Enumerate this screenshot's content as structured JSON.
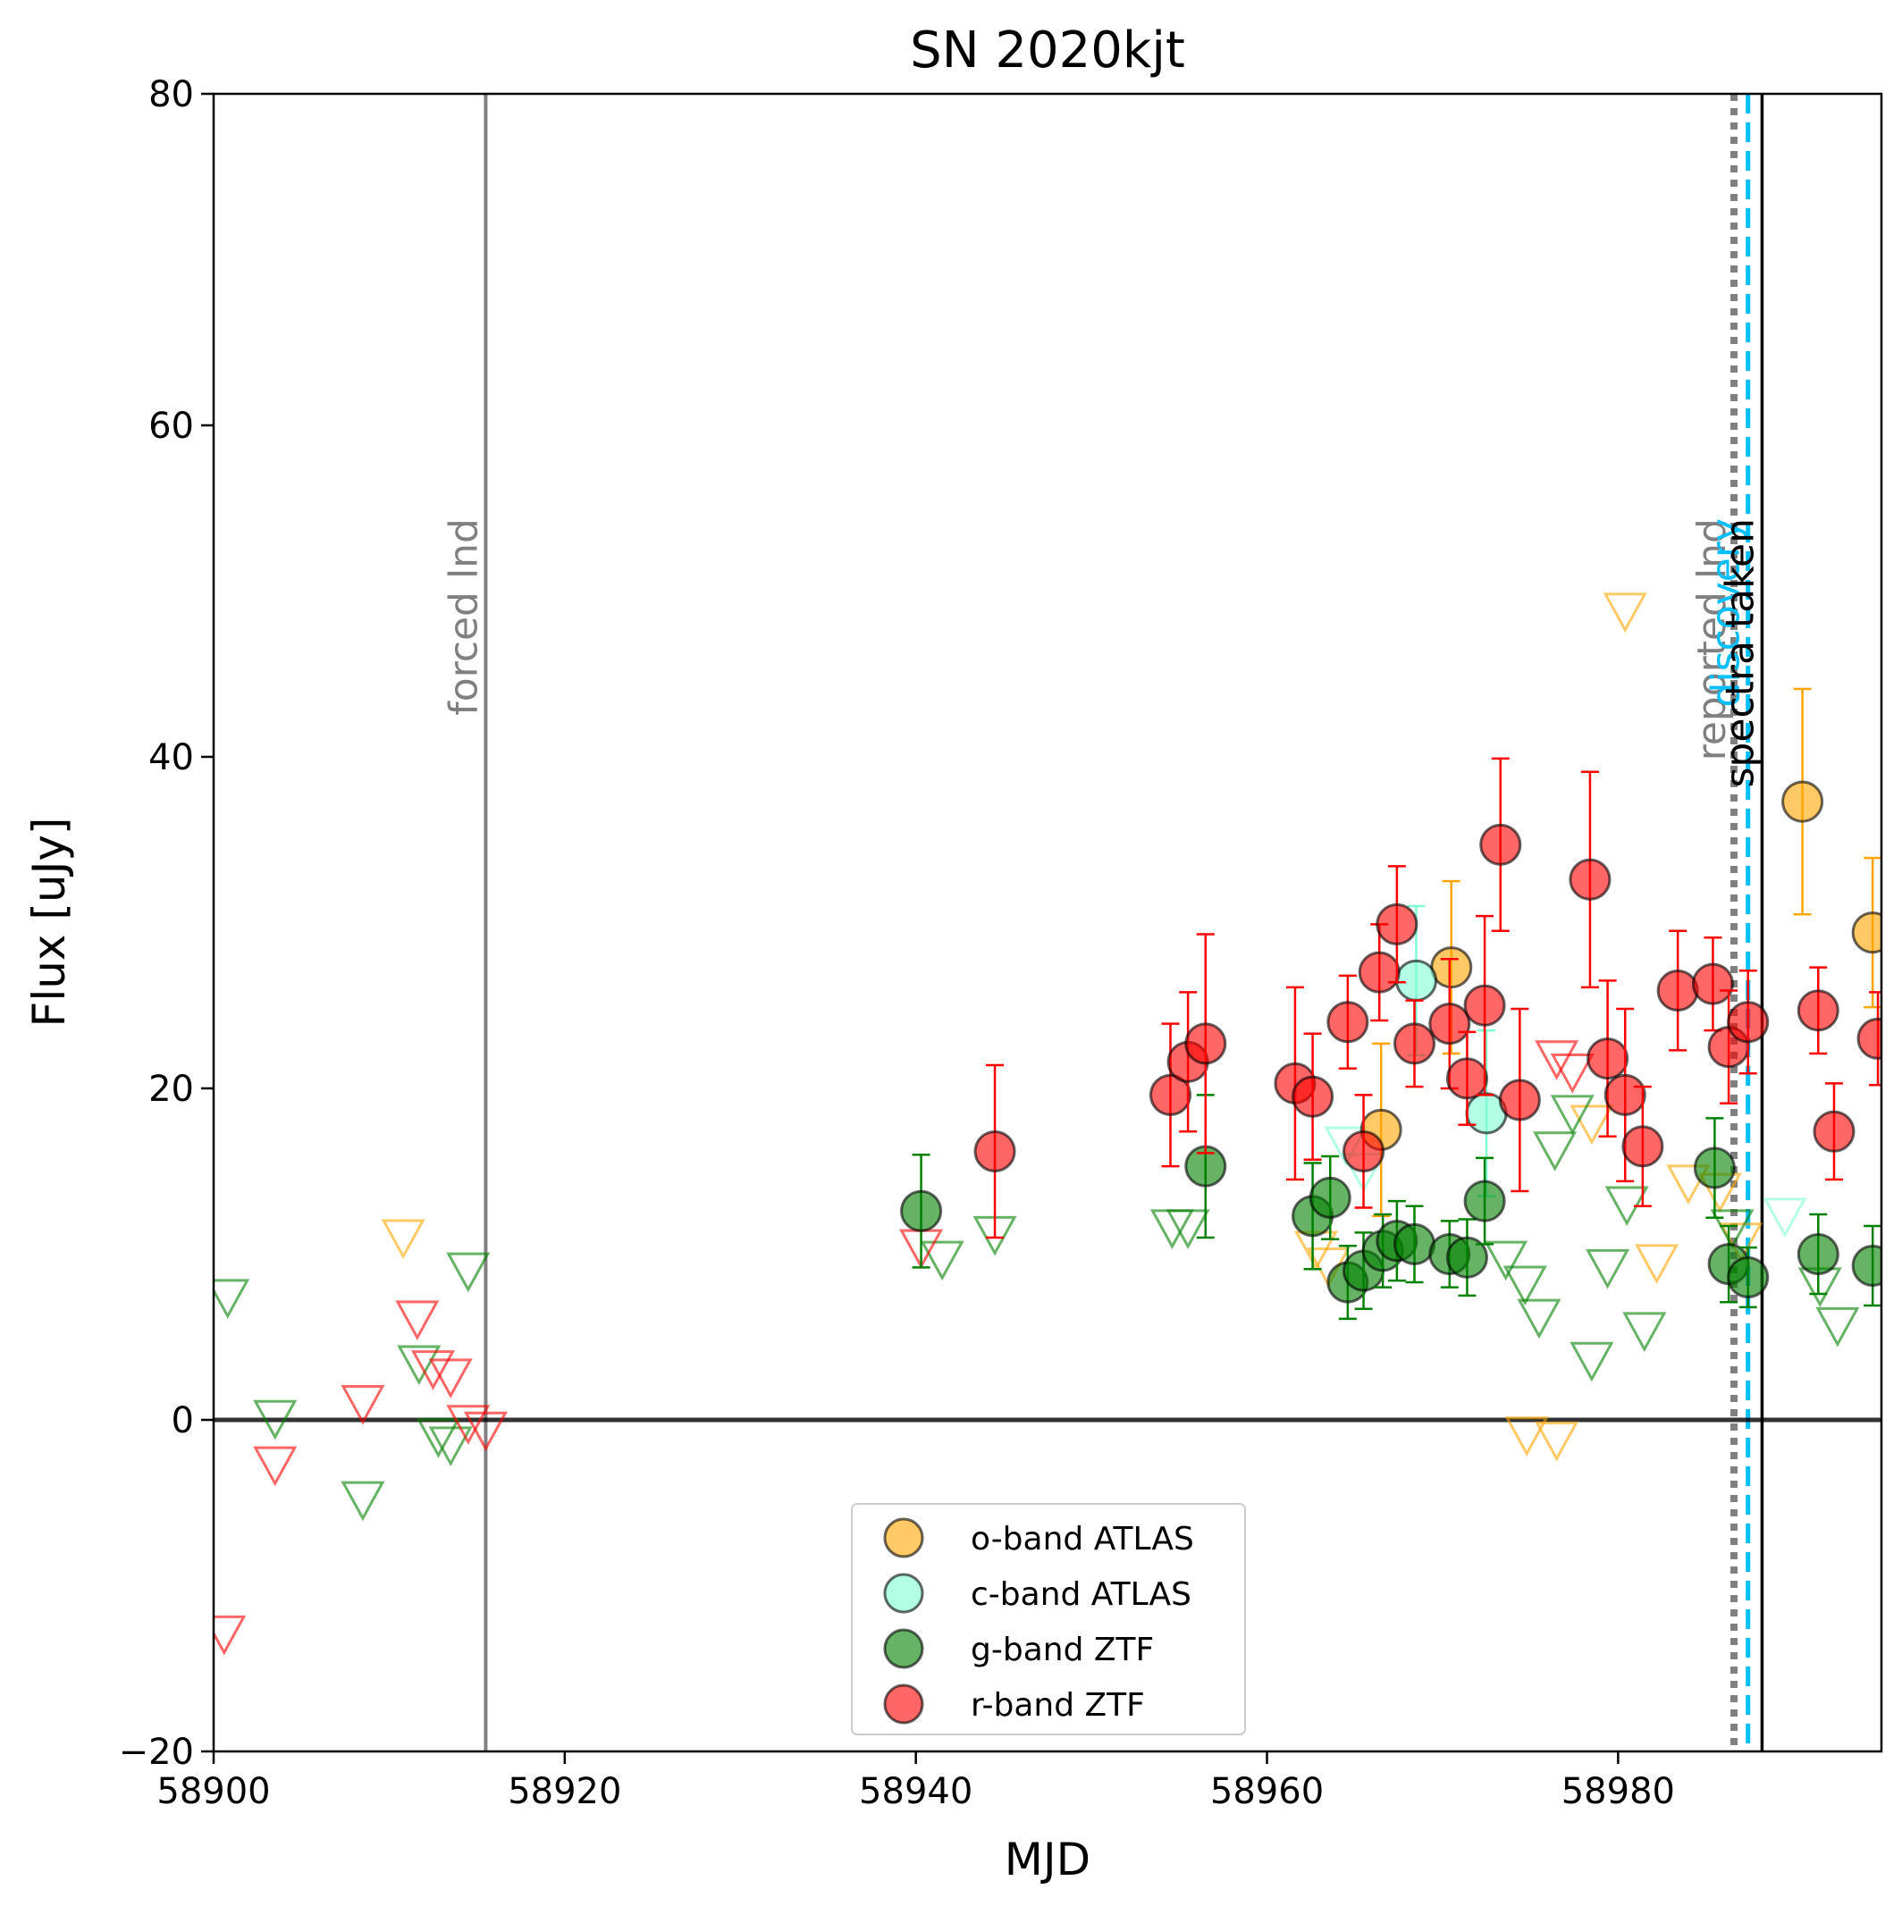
{
  "chart_data": {
    "type": "scatter",
    "title": "SN 2020kjt",
    "xlabel": "MJD",
    "ylabel": "Flux [uJy]",
    "xlim": [
      58900,
      58995
    ],
    "ylim": [
      -20,
      80
    ],
    "xticks": [
      58900,
      58920,
      58940,
      58960,
      58980
    ],
    "yticks": [
      -20,
      0,
      20,
      40,
      60,
      80
    ],
    "xtick_labels": [
      "58900",
      "58920",
      "58940",
      "58960",
      "58980"
    ],
    "ytick_labels": [
      "−20",
      "0",
      "20",
      "40",
      "60",
      "80"
    ],
    "grid": false,
    "legend_position": "bottom-center",
    "zero_line": 0,
    "vlines": [
      {
        "x": 58915.5,
        "label": "forced lnd",
        "color": "#808080",
        "style": "solid"
      },
      {
        "x": 58986.6,
        "label": "reported lnd",
        "color": "#808080",
        "style": "dotted"
      },
      {
        "x": 58987.4,
        "label": "discovery",
        "color": "#00bfff",
        "style": "dashed"
      },
      {
        "x": 58988.2,
        "label": "spectra taken",
        "color": "#000000",
        "style": "solid"
      }
    ],
    "series": [
      {
        "name": "o-band ATLAS",
        "color": "#FFA500",
        "detections": [
          {
            "x": 58966.5,
            "y": 17.5,
            "err": 5.2
          },
          {
            "x": 58970.5,
            "y": 27.3,
            "err": 5.2
          },
          {
            "x": 58990.5,
            "y": 37.3,
            "err": 6.8
          },
          {
            "x": 58994.5,
            "y": 29.4,
            "err": 4.5
          }
        ],
        "limits": [
          {
            "x": 58910.8,
            "y": 11.2
          },
          {
            "x": 58962.8,
            "y": 10.5
          },
          {
            "x": 58963.5,
            "y": 9.5
          },
          {
            "x": 58974.8,
            "y": -0.7
          },
          {
            "x": 58976.5,
            "y": -1.0
          },
          {
            "x": 58978.5,
            "y": 18.1
          },
          {
            "x": 58980.4,
            "y": 49.0
          },
          {
            "x": 58982.2,
            "y": 9.7
          },
          {
            "x": 58984.0,
            "y": 14.5
          },
          {
            "x": 58985.8,
            "y": 14.0
          },
          {
            "x": 58987.0,
            "y": 11.0
          }
        ]
      },
      {
        "name": "c-band ATLAS",
        "color": "#7FFFD4",
        "detections": [
          {
            "x": 58968.5,
            "y": 26.5,
            "err": 4.5
          },
          {
            "x": 58972.5,
            "y": 18.5,
            "err": 5.0
          }
        ],
        "limits": [
          {
            "x": 58964.5,
            "y": 16.8
          },
          {
            "x": 58965.5,
            "y": 15.2
          },
          {
            "x": 58989.5,
            "y": 12.5
          }
        ]
      },
      {
        "name": "g-band ZTF",
        "color": "#008000",
        "detections": [
          {
            "x": 58940.3,
            "y": 12.6,
            "err": 3.4
          },
          {
            "x": 58956.5,
            "y": 15.3,
            "err": 4.3
          },
          {
            "x": 58962.6,
            "y": 12.3,
            "err": 3.2
          },
          {
            "x": 58963.6,
            "y": 13.4,
            "err": 2.5
          },
          {
            "x": 58964.6,
            "y": 8.3,
            "err": 2.2
          },
          {
            "x": 58965.5,
            "y": 9.0,
            "err": 2.3
          },
          {
            "x": 58966.6,
            "y": 10.2,
            "err": 2.2
          },
          {
            "x": 58967.4,
            "y": 10.8,
            "err": 2.4
          },
          {
            "x": 58968.4,
            "y": 10.6,
            "err": 2.3
          },
          {
            "x": 58970.4,
            "y": 10.0,
            "err": 2.0
          },
          {
            "x": 58971.4,
            "y": 9.8,
            "err": 2.3
          },
          {
            "x": 58972.4,
            "y": 13.2,
            "err": 2.6
          },
          {
            "x": 58985.5,
            "y": 15.2,
            "err": 3.0
          },
          {
            "x": 58986.3,
            "y": 9.4,
            "err": 2.3
          },
          {
            "x": 58987.4,
            "y": 8.6,
            "err": 1.8
          },
          {
            "x": 58991.4,
            "y": 10.0,
            "err": 2.4
          },
          {
            "x": 58994.5,
            "y": 9.3,
            "err": 2.4
          }
        ],
        "limits": [
          {
            "x": 58900.8,
            "y": 7.6
          },
          {
            "x": 58903.5,
            "y": 0.3
          },
          {
            "x": 58908.5,
            "y": -4.6
          },
          {
            "x": 58911.7,
            "y": 3.6
          },
          {
            "x": 58912.8,
            "y": -0.8
          },
          {
            "x": 58913.5,
            "y": -1.3
          },
          {
            "x": 58914.5,
            "y": 9.2
          },
          {
            "x": 58941.5,
            "y": 9.9
          },
          {
            "x": 58944.5,
            "y": 11.4
          },
          {
            "x": 58954.6,
            "y": 11.8
          },
          {
            "x": 58955.5,
            "y": 11.8
          },
          {
            "x": 58973.6,
            "y": 9.9
          },
          {
            "x": 58974.7,
            "y": 8.4
          },
          {
            "x": 58975.5,
            "y": 6.4
          },
          {
            "x": 58976.4,
            "y": 16.5
          },
          {
            "x": 58977.4,
            "y": 18.7
          },
          {
            "x": 58978.5,
            "y": 3.8
          },
          {
            "x": 58979.4,
            "y": 9.4
          },
          {
            "x": 58980.5,
            "y": 13.2
          },
          {
            "x": 58981.5,
            "y": 5.6
          },
          {
            "x": 58986.5,
            "y": 11.8
          },
          {
            "x": 58991.5,
            "y": 8.3
          },
          {
            "x": 58992.5,
            "y": 5.9
          }
        ]
      },
      {
        "name": "r-band ZTF",
        "color": "#FF0000",
        "detections": [
          {
            "x": 58944.5,
            "y": 16.2,
            "err": 5.2
          },
          {
            "x": 58954.5,
            "y": 19.6,
            "err": 4.3
          },
          {
            "x": 58955.5,
            "y": 21.6,
            "err": 4.2
          },
          {
            "x": 58956.5,
            "y": 22.7,
            "err": 6.6
          },
          {
            "x": 58961.6,
            "y": 20.3,
            "err": 5.8
          },
          {
            "x": 58962.6,
            "y": 19.5,
            "err": 3.8
          },
          {
            "x": 58964.6,
            "y": 24.0,
            "err": 2.8
          },
          {
            "x": 58965.5,
            "y": 16.2,
            "err": 3.4
          },
          {
            "x": 58966.4,
            "y": 27.0,
            "err": 2.9
          },
          {
            "x": 58967.4,
            "y": 29.9,
            "err": 3.5
          },
          {
            "x": 58968.4,
            "y": 22.7,
            "err": 2.6
          },
          {
            "x": 58970.4,
            "y": 23.9,
            "err": 3.9
          },
          {
            "x": 58971.4,
            "y": 20.6,
            "err": 2.8
          },
          {
            "x": 58972.4,
            "y": 25.0,
            "err": 5.4
          },
          {
            "x": 58973.3,
            "y": 34.7,
            "err": 5.2
          },
          {
            "x": 58974.4,
            "y": 19.3,
            "err": 5.5
          },
          {
            "x": 58978.4,
            "y": 32.6,
            "err": 6.5
          },
          {
            "x": 58979.4,
            "y": 21.8,
            "err": 4.7
          },
          {
            "x": 58980.4,
            "y": 19.6,
            "err": 5.2
          },
          {
            "x": 58981.4,
            "y": 16.5,
            "err": 3.6
          },
          {
            "x": 58983.4,
            "y": 25.9,
            "err": 3.6
          },
          {
            "x": 58985.4,
            "y": 26.3,
            "err": 2.8
          },
          {
            "x": 58986.3,
            "y": 22.5,
            "err": 3.4
          },
          {
            "x": 58987.4,
            "y": 24.0,
            "err": 3.1
          },
          {
            "x": 58991.4,
            "y": 24.7,
            "err": 2.6
          },
          {
            "x": 58992.3,
            "y": 17.4,
            "err": 2.9
          },
          {
            "x": 58994.8,
            "y": 23.0,
            "err": 2.8
          }
        ],
        "limits": [
          {
            "x": 58900.6,
            "y": -12.7
          },
          {
            "x": 58903.5,
            "y": -2.5
          },
          {
            "x": 58908.5,
            "y": 1.2
          },
          {
            "x": 58911.6,
            "y": 6.3
          },
          {
            "x": 58912.5,
            "y": 3.3
          },
          {
            "x": 58913.5,
            "y": 2.8
          },
          {
            "x": 58914.5,
            "y": 0.0
          },
          {
            "x": 58915.5,
            "y": -0.4
          },
          {
            "x": 58940.3,
            "y": 10.6
          },
          {
            "x": 58976.5,
            "y": 22.0
          },
          {
            "x": 58977.4,
            "y": 21.2
          }
        ]
      }
    ]
  }
}
